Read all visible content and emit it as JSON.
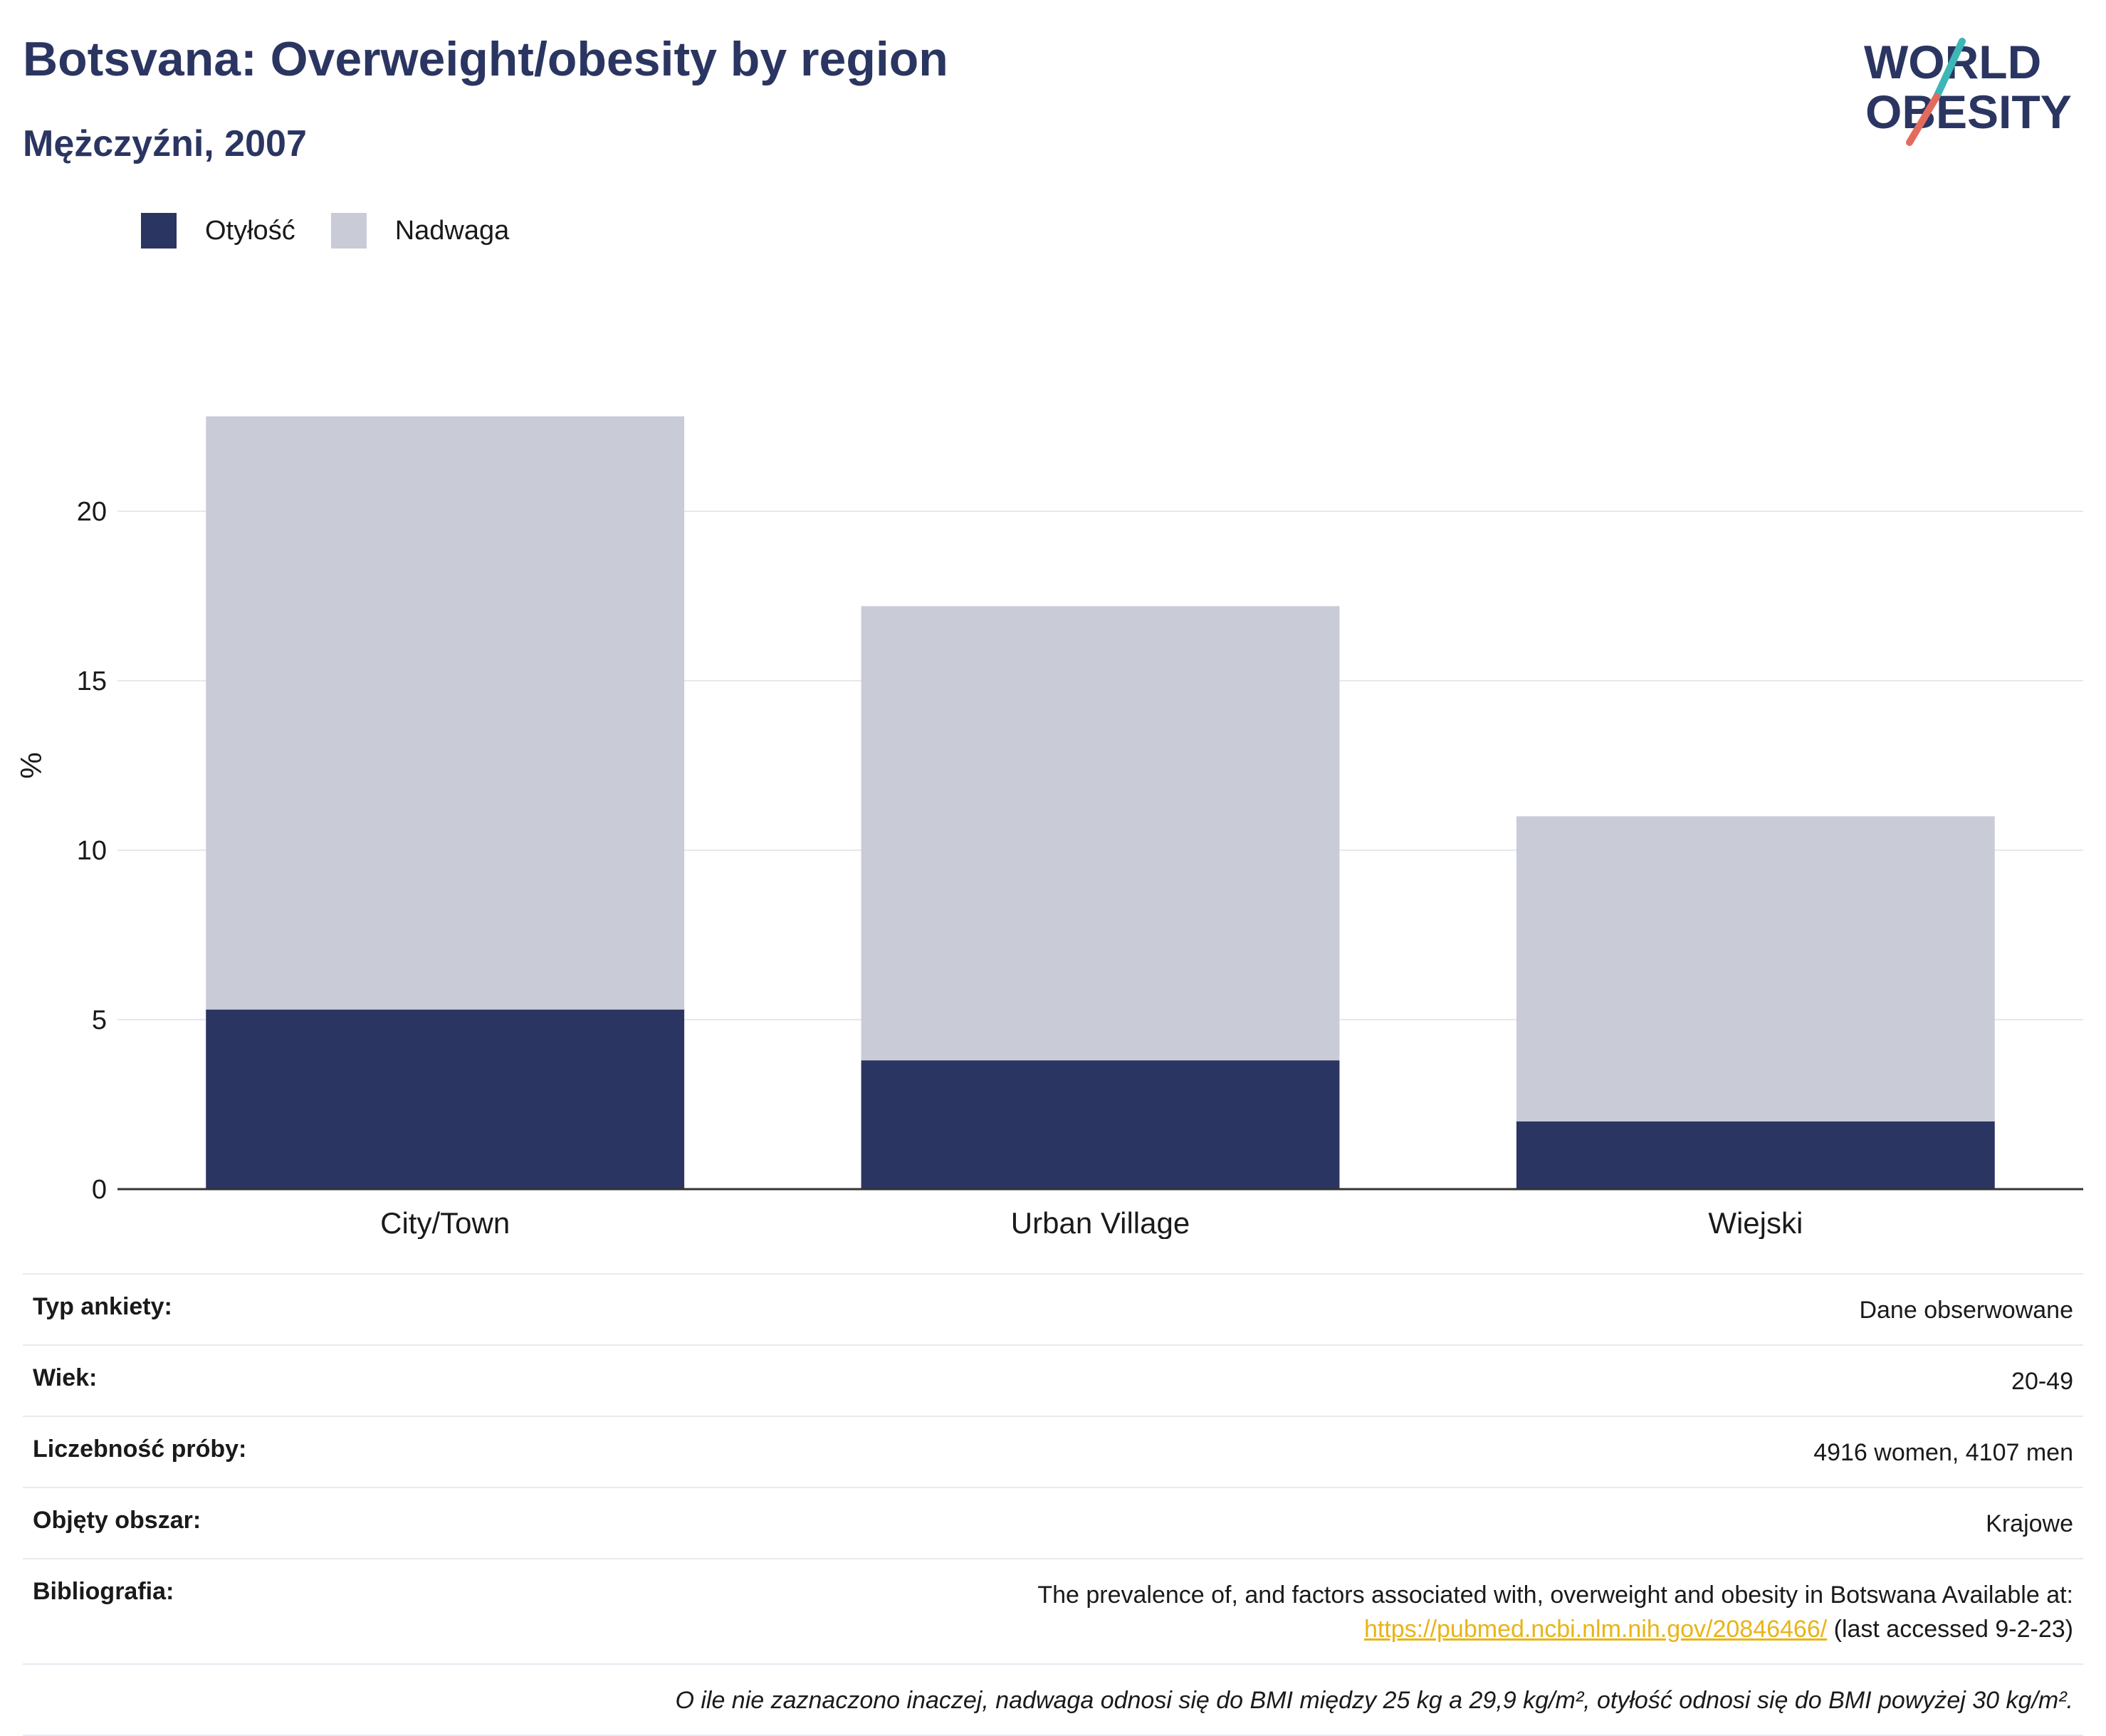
{
  "header": {
    "title": "Botsvana: Overweight/obesity by region",
    "subtitle": "Mężczyźni, 2007"
  },
  "logo": {
    "line1": "WORLD",
    "line2": "OBESITY",
    "colors": {
      "text": "#2b3561",
      "slash_top": "#3cb6b7",
      "slash_bottom": "#e36b5d"
    }
  },
  "legend": {
    "items": [
      {
        "label": "Otyłość",
        "color": "#2b3561"
      },
      {
        "label": "Nadwaga",
        "color": "#c9ccd7"
      }
    ]
  },
  "chart_data": {
    "type": "bar",
    "stacked": true,
    "categories": [
      "City/Town",
      "Urban Village",
      "Wiejski"
    ],
    "series": [
      {
        "name": "Otyłość",
        "values": [
          5.3,
          3.8,
          2.0
        ],
        "color": "#2b3561"
      },
      {
        "name": "Nadwaga",
        "values": [
          17.5,
          13.4,
          9.0
        ],
        "color": "#c9ccd7"
      }
    ],
    "ylabel": "%",
    "ylim": [
      0,
      25
    ],
    "yticks": [
      0,
      5,
      10,
      15,
      20
    ],
    "grid": true
  },
  "meta": {
    "rows": [
      {
        "key": "Typ ankiety:",
        "value": "Dane obserwowane"
      },
      {
        "key": "Wiek:",
        "value": "20-49"
      },
      {
        "key": "Liczebność próby:",
        "value": "4916 women, 4107 men"
      },
      {
        "key": "Objęty obszar:",
        "value": "Krajowe"
      }
    ],
    "bibliography": {
      "key": "Bibliografia:",
      "text": "The prevalence of, and factors associated with, overweight and obesity in Botswana Available at:",
      "link": "https://pubmed.ncbi.nlm.nih.gov/20846466/",
      "suffix": " (last accessed 9-2-23)"
    },
    "footnote": "O ile nie zaznaczono inaczej, nadwaga odnosi się do BMI między 25 kg a 29,9 kg/m², otyłość odnosi się do BMI powyżej 30 kg/m²."
  }
}
